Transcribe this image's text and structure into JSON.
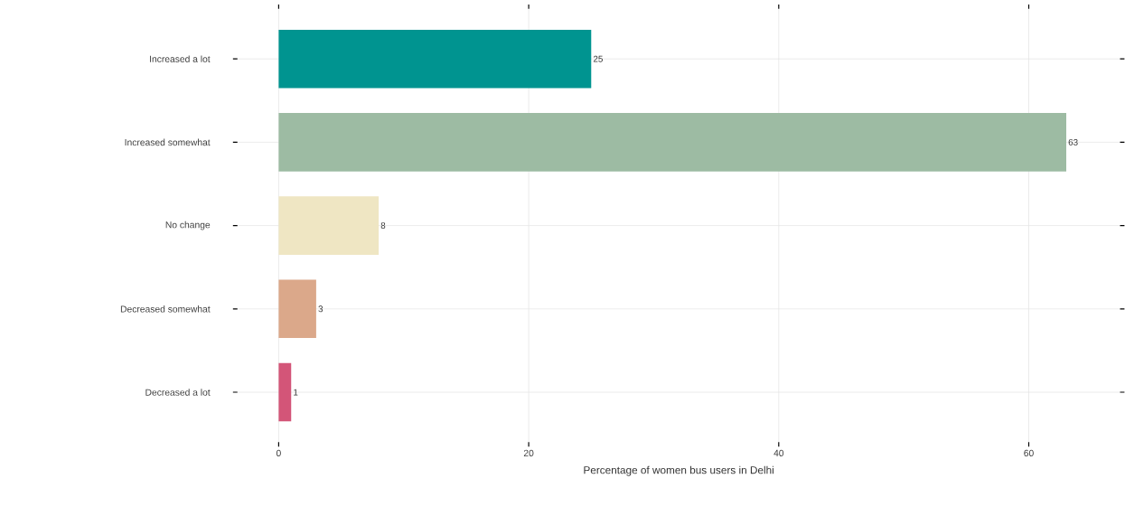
{
  "chart_data": {
    "type": "bar",
    "orientation": "horizontal",
    "categories": [
      "Increased a lot",
      "Increased somewhat",
      "No change",
      "Decreased somewhat",
      "Decreased a lot"
    ],
    "values": [
      25,
      63,
      8,
      3,
      1
    ],
    "colors": [
      "#009490",
      "#9dbba3",
      "#efe6c3",
      "#dba88a",
      "#d35578"
    ],
    "data_labels": true,
    "xlabel": "Percentage of women bus users in Delhi",
    "xlim": [
      -3.3,
      67.3
    ],
    "xticks": [
      0,
      20,
      40,
      60
    ],
    "grid": true
  }
}
